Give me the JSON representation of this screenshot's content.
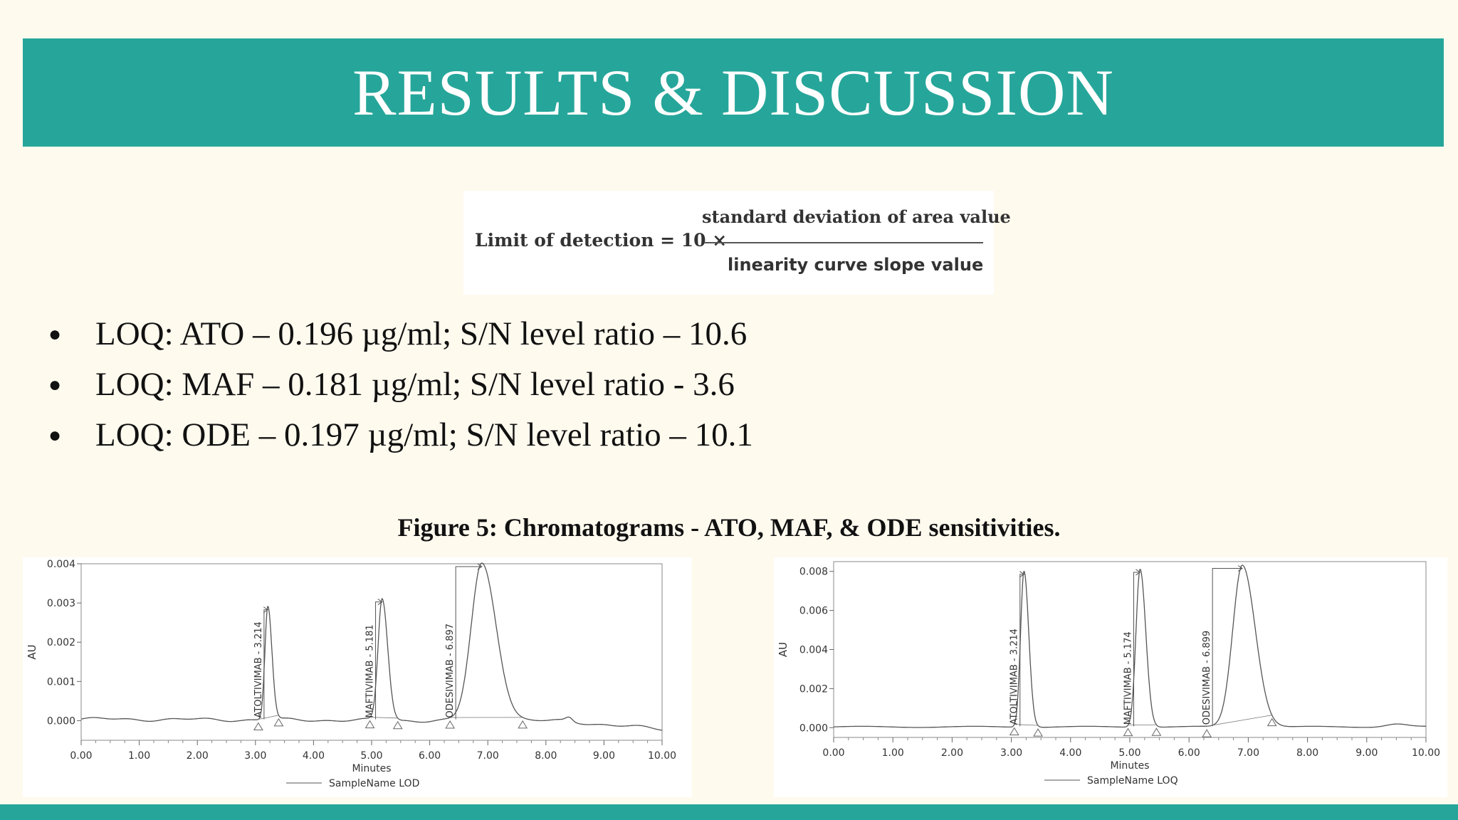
{
  "header": {
    "title": "RESULTS & DISCUSSION"
  },
  "formula": {
    "lhs": "Limit of detection = 10 ×",
    "numerator": "standard deviation of area value",
    "denominator": "linearity curve slope value"
  },
  "bullets": [
    "LOQ: ATO – 0.196 µg/ml; S/N level ratio – 10.6",
    "LOQ: MAF – 0.181 µg/ml; S/N level ratio - 3.6",
    "LOQ: ODE – 0.197 µg/ml; S/N level ratio – 10.1"
  ],
  "figure_caption": "Figure 5: Chromatograms - ATO, MAF, & ODE sensitivities.",
  "colors": {
    "accent": "#26a69a",
    "background": "#fffaee",
    "trace": "#555555"
  },
  "chart_data": [
    {
      "type": "line",
      "xlabel": "Minutes",
      "ylabel": "AU",
      "xlim": [
        0,
        10
      ],
      "ylim": [
        -0.0005,
        0.004
      ],
      "xticks": [
        "0.00",
        "1.00",
        "2.00",
        "3.00",
        "4.00",
        "5.00",
        "6.00",
        "7.00",
        "8.00",
        "9.00",
        "10.00"
      ],
      "yticks": [
        "0.000",
        "0.001",
        "0.002",
        "0.003",
        "0.004"
      ],
      "legend": "SampleName LOD",
      "peaks": [
        {
          "label": "ATOLTIVIMAB - 3.214",
          "rt": 3.214,
          "height": 0.0029,
          "start": 3.05,
          "end": 3.4
        },
        {
          "label": "MAFTIVIMAB - 5.181",
          "rt": 5.181,
          "height": 0.0031,
          "start": 4.97,
          "end": 5.45
        },
        {
          "label": "ODESIVIMAB - 6.897",
          "rt": 6.897,
          "height": 0.004,
          "start": 6.35,
          "end": 7.6
        }
      ]
    },
    {
      "type": "line",
      "xlabel": "Minutes",
      "ylabel": "AU",
      "xlim": [
        0,
        10
      ],
      "ylim": [
        -0.0005,
        0.0085
      ],
      "xticks": [
        "0.00",
        "1.00",
        "2.00",
        "3.00",
        "4.00",
        "5.00",
        "6.00",
        "7.00",
        "8.00",
        "9.00",
        "10.00"
      ],
      "yticks": [
        "0.000",
        "0.002",
        "0.004",
        "0.006",
        "0.008"
      ],
      "legend": "SampleName LOQ",
      "peaks": [
        {
          "label": "ATOLTIVIMAB - 3.214",
          "rt": 3.214,
          "height": 0.008,
          "start": 3.05,
          "end": 3.45
        },
        {
          "label": "MAFTIVIMAB - 5.174",
          "rt": 5.174,
          "height": 0.0081,
          "start": 4.97,
          "end": 5.45
        },
        {
          "label": "ODESIVIMAB - 6.899",
          "rt": 6.899,
          "height": 0.0083,
          "start": 6.3,
          "end": 7.4
        }
      ]
    }
  ]
}
